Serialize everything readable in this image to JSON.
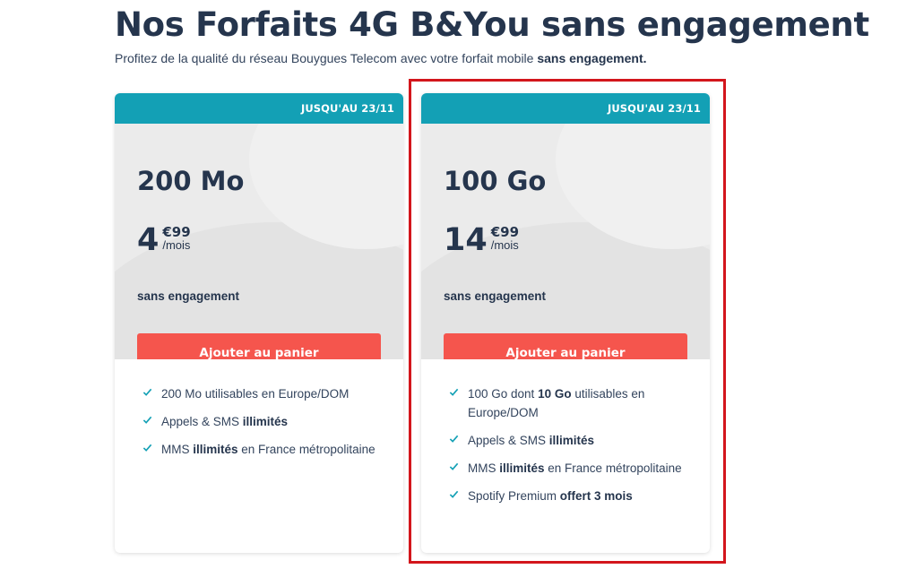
{
  "header": {
    "title": "Nos Forfaits 4G B&You sans engagement",
    "subtitle_text": "Profitez de la qualité du réseau Bouygues Telecom avec votre forfait mobile ",
    "subtitle_bold": "sans engagement."
  },
  "colors": {
    "banner": "#13a0b5",
    "button": "#f5554d",
    "check": "#13a0b5",
    "highlight": "#d3161c",
    "text_dark": "#25354d"
  },
  "plans": [
    {
      "banner": "JUSQU'AU 23/11",
      "data": "200 Mo",
      "price_int": "4",
      "price_cents": "€99",
      "price_per": "/mois",
      "commitment": "sans engagement",
      "button_label": "Ajouter au panier",
      "features": [
        {
          "pre": "200 Mo utilisables en Europe/DOM",
          "bold": "",
          "post": ""
        },
        {
          "pre": "Appels & SMS ",
          "bold": "illimités",
          "post": ""
        },
        {
          "pre": "MMS ",
          "bold": "illimités",
          "post": " en France métropolitaine"
        }
      ]
    },
    {
      "banner": "JUSQU'AU 23/11",
      "data": "100 Go",
      "price_int": "14",
      "price_cents": "€99",
      "price_per": "/mois",
      "commitment": "sans engagement",
      "button_label": "Ajouter au panier",
      "highlighted": true,
      "features": [
        {
          "pre": "100 Go dont ",
          "bold": "10 Go",
          "post": " utilisables en Europe/DOM"
        },
        {
          "pre": "Appels & SMS ",
          "bold": "illimités",
          "post": ""
        },
        {
          "pre": "MMS ",
          "bold": "illimités",
          "post": " en France métropolitaine"
        },
        {
          "pre": "Spotify Premium ",
          "bold": "offert 3 mois",
          "post": ""
        }
      ]
    }
  ]
}
